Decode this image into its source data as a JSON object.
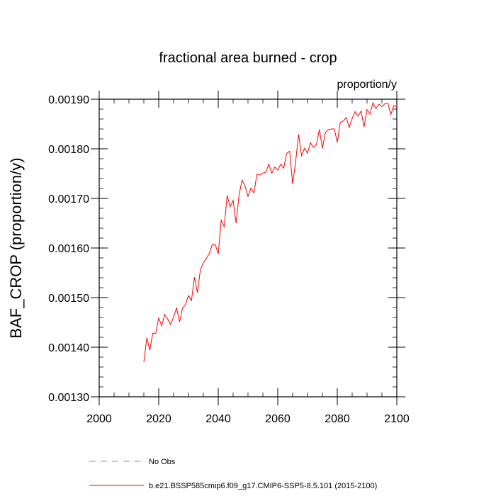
{
  "chart_data": {
    "type": "line",
    "title": "fractional area burned - crop",
    "units_label": "proportion/y",
    "ylabel": "BAF_CROP  (proportion/y)",
    "xlabel": "",
    "xlim": [
      2000,
      2100
    ],
    "ylim": [
      0.0013,
      0.0019
    ],
    "x_ticks": [
      2000,
      2020,
      2040,
      2060,
      2080,
      2100
    ],
    "y_ticks": [
      0.0013,
      0.0014,
      0.0015,
      0.0016,
      0.0017,
      0.0018,
      0.0019
    ],
    "x_tick_labels": [
      "2000",
      "2020",
      "2040",
      "2060",
      "2080",
      "2100"
    ],
    "y_tick_labels": [
      "0.00130",
      "0.00140",
      "0.00150",
      "0.00160",
      "0.00170",
      "0.00180",
      "0.00190"
    ],
    "grid": false,
    "legend_placement": "bottom-left",
    "series": [
      {
        "name": "b.e21.BSSP585cmip6.f09_g17.CMIP6-SSP5-8.5.101 (2015-2100)",
        "color": "#ff0000",
        "style": "solid",
        "x": [
          2015,
          2016,
          2017,
          2018,
          2019,
          2020,
          2021,
          2022,
          2023,
          2024,
          2025,
          2026,
          2027,
          2028,
          2029,
          2030,
          2031,
          2032,
          2033,
          2034,
          2035,
          2036,
          2037,
          2038,
          2039,
          2040,
          2041,
          2042,
          2043,
          2044,
          2045,
          2046,
          2047,
          2048,
          2049,
          2050,
          2051,
          2052,
          2053,
          2054,
          2055,
          2056,
          2057,
          2058,
          2059,
          2060,
          2061,
          2062,
          2063,
          2064,
          2065,
          2066,
          2067,
          2068,
          2069,
          2070,
          2071,
          2072,
          2073,
          2074,
          2075,
          2076,
          2077,
          2078,
          2079,
          2080,
          2081,
          2082,
          2083,
          2084,
          2085,
          2086,
          2087,
          2088,
          2089,
          2090,
          2091,
          2092,
          2093,
          2094,
          2095,
          2096,
          2097,
          2098,
          2099,
          2100
        ],
        "y": [
          0.00137,
          0.001419,
          0.001394,
          0.001428,
          0.001428,
          0.001459,
          0.001443,
          0.001466,
          0.001457,
          0.001446,
          0.001461,
          0.001479,
          0.001451,
          0.001479,
          0.001486,
          0.001504,
          0.001494,
          0.001541,
          0.00151,
          0.001556,
          0.00157,
          0.001579,
          0.001589,
          0.001607,
          0.001607,
          0.001588,
          0.001656,
          0.001643,
          0.001706,
          0.001683,
          0.001696,
          0.00165,
          0.001707,
          0.001737,
          0.001725,
          0.001704,
          0.001721,
          0.001711,
          0.001749,
          0.001747,
          0.001751,
          0.001753,
          0.001769,
          0.001751,
          0.001763,
          0.001757,
          0.001769,
          0.001761,
          0.001791,
          0.001795,
          0.001729,
          0.001774,
          0.001829,
          0.001786,
          0.001801,
          0.001791,
          0.001812,
          0.001803,
          0.001809,
          0.001839,
          0.001801,
          0.001833,
          0.001838,
          0.00184,
          0.00184,
          0.001813,
          0.001853,
          0.001856,
          0.001863,
          0.001843,
          0.001861,
          0.001875,
          0.001866,
          0.001876,
          0.001844,
          0.001879,
          0.00187,
          0.001893,
          0.001881,
          0.00189,
          0.001885,
          0.001891,
          0.001892,
          0.001869,
          0.001887,
          0.001885
        ]
      },
      {
        "name": "No Obs",
        "color": "#8a8aff",
        "style": "dashed",
        "x": [],
        "y": []
      }
    ]
  }
}
